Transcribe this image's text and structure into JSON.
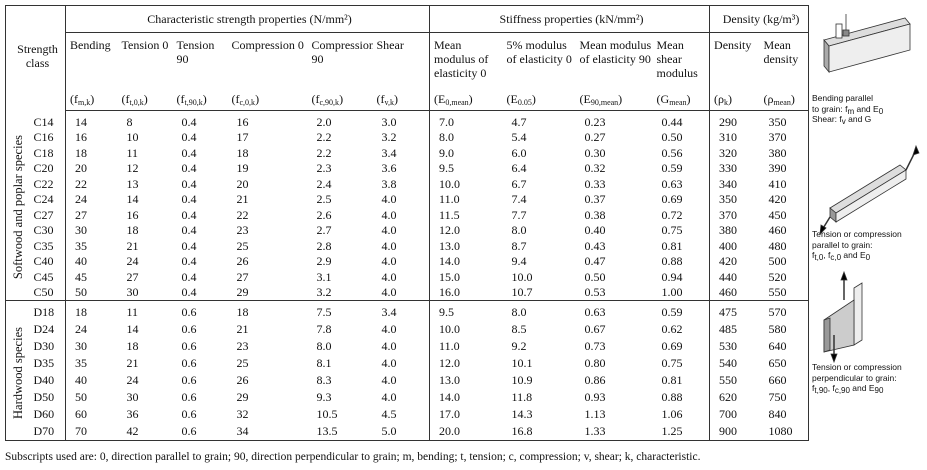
{
  "table": {
    "strength_class_header": "Strength class",
    "group_headers": [
      "Characteristic strength properties (N/mm²)",
      "Stiffness properties (kN/mm²)",
      "Density (kg/m³)"
    ],
    "columns": [
      {
        "name": "Bending",
        "symbol": {
          "pre": "(f",
          "sub": "m,k",
          "post": ")"
        }
      },
      {
        "name": "Tension 0",
        "symbol": {
          "pre": "(f",
          "sub": "t,0,k",
          "post": ")"
        }
      },
      {
        "name": "Tension 90",
        "symbol": {
          "pre": "(f",
          "sub": "t,90,k",
          "post": ")"
        }
      },
      {
        "name": "Compression 0",
        "symbol": {
          "pre": "(f",
          "sub": "c,0,k",
          "post": ")"
        }
      },
      {
        "name": "Compression 90",
        "symbol": {
          "pre": "(f",
          "sub": "c,90,k",
          "post": ")"
        }
      },
      {
        "name": "Shear",
        "symbol": {
          "pre": "(f",
          "sub": "v,k",
          "post": ")"
        }
      },
      {
        "name": "Mean modulus of elasticity 0",
        "symbol": {
          "pre": "(E",
          "sub": "0,mean",
          "post": ")"
        }
      },
      {
        "name": "5% modulus of elasticity 0",
        "symbol": {
          "pre": "(E",
          "sub": "0.05",
          "post": ")"
        }
      },
      {
        "name": "Mean modulus of elasticity 90",
        "symbol": {
          "pre": "(E",
          "sub": "90,mean",
          "post": ")"
        }
      },
      {
        "name": "Mean shear modulus",
        "symbol": {
          "pre": "(G",
          "sub": "mean",
          "post": ")"
        }
      },
      {
        "name": "Density",
        "symbol": {
          "pre": "(ρ",
          "sub": "k",
          "post": ")"
        }
      },
      {
        "name": "Mean density",
        "symbol": {
          "pre": "(ρ",
          "sub": "mean",
          "post": ")"
        }
      }
    ],
    "groups": [
      {
        "label": "Softwood and poplar species",
        "rows": [
          [
            "C14",
            "14",
            "8",
            "0.4",
            "16",
            "2.0",
            "3.0",
            "7.0",
            "4.7",
            "0.23",
            "0.44",
            "290",
            "350"
          ],
          [
            "C16",
            "16",
            "10",
            "0.4",
            "17",
            "2.2",
            "3.2",
            "8.0",
            "5.4",
            "0.27",
            "0.50",
            "310",
            "370"
          ],
          [
            "C18",
            "18",
            "11",
            "0.4",
            "18",
            "2.2",
            "3.4",
            "9.0",
            "6.0",
            "0.30",
            "0.56",
            "320",
            "380"
          ],
          [
            "C20",
            "20",
            "12",
            "0.4",
            "19",
            "2.3",
            "3.6",
            "9.5",
            "6.4",
            "0.32",
            "0.59",
            "330",
            "390"
          ],
          [
            "C22",
            "22",
            "13",
            "0.4",
            "20",
            "2.4",
            "3.8",
            "10.0",
            "6.7",
            "0.33",
            "0.63",
            "340",
            "410"
          ],
          [
            "C24",
            "24",
            "14",
            "0.4",
            "21",
            "2.5",
            "4.0",
            "11.0",
            "7.4",
            "0.37",
            "0.69",
            "350",
            "420"
          ],
          [
            "C27",
            "27",
            "16",
            "0.4",
            "22",
            "2.6",
            "4.0",
            "11.5",
            "7.7",
            "0.38",
            "0.72",
            "370",
            "450"
          ],
          [
            "C30",
            "30",
            "18",
            "0.4",
            "23",
            "2.7",
            "4.0",
            "12.0",
            "8.0",
            "0.40",
            "0.75",
            "380",
            "460"
          ],
          [
            "C35",
            "35",
            "21",
            "0.4",
            "25",
            "2.8",
            "4.0",
            "13.0",
            "8.7",
            "0.43",
            "0.81",
            "400",
            "480"
          ],
          [
            "C40",
            "40",
            "24",
            "0.4",
            "26",
            "2.9",
            "4.0",
            "14.0",
            "9.4",
            "0.47",
            "0.88",
            "420",
            "500"
          ],
          [
            "C45",
            "45",
            "27",
            "0.4",
            "27",
            "3.1",
            "4.0",
            "15.0",
            "10.0",
            "0.50",
            "0.94",
            "440",
            "520"
          ],
          [
            "C50",
            "50",
            "30",
            "0.4",
            "29",
            "3.2",
            "4.0",
            "16.0",
            "10.7",
            "0.53",
            "1.00",
            "460",
            "550"
          ]
        ]
      },
      {
        "label": "Hardwood species",
        "rows": [
          [
            "D18",
            "18",
            "11",
            "0.6",
            "18",
            "7.5",
            "3.4",
            "9.5",
            "8.0",
            "0.63",
            "0.59",
            "475",
            "570"
          ],
          [
            "D24",
            "24",
            "14",
            "0.6",
            "21",
            "7.8",
            "4.0",
            "10.0",
            "8.5",
            "0.67",
            "0.62",
            "485",
            "580"
          ],
          [
            "D30",
            "30",
            "18",
            "0.6",
            "23",
            "8.0",
            "4.0",
            "11.0",
            "9.2",
            "0.73",
            "0.69",
            "530",
            "640"
          ],
          [
            "D35",
            "35",
            "21",
            "0.6",
            "25",
            "8.1",
            "4.0",
            "12.0",
            "10.1",
            "0.80",
            "0.75",
            "540",
            "650"
          ],
          [
            "D40",
            "40",
            "24",
            "0.6",
            "26",
            "8.3",
            "4.0",
            "13.0",
            "10.9",
            "0.86",
            "0.81",
            "550",
            "660"
          ],
          [
            "D50",
            "50",
            "30",
            "0.6",
            "29",
            "9.3",
            "4.0",
            "14.0",
            "11.8",
            "0.93",
            "0.88",
            "620",
            "750"
          ],
          [
            "D60",
            "60",
            "36",
            "0.6",
            "32",
            "10.5",
            "4.5",
            "17.0",
            "14.3",
            "1.13",
            "1.06",
            "700",
            "840"
          ],
          [
            "D70",
            "70",
            "42",
            "0.6",
            "34",
            "13.5",
            "5.0",
            "20.0",
            "16.8",
            "1.33",
            "1.25",
            "900",
            "1080"
          ]
        ]
      }
    ]
  },
  "figures": [
    {
      "caption": [
        [
          "Bending parallel"
        ],
        [
          "to grain: f",
          {
            "sub": "m"
          },
          " and E",
          {
            "sub": "0"
          }
        ],
        [
          "Shear: f",
          {
            "sub": "v"
          },
          " and G"
        ]
      ]
    },
    {
      "caption": [
        [
          "Tension or compression"
        ],
        [
          "parallel to grain:"
        ],
        [
          "f",
          {
            "sub": "t,0"
          },
          ", f",
          {
            "sub": "c,0"
          },
          " and E",
          {
            "sub": "0"
          }
        ]
      ]
    },
    {
      "caption": [
        [
          "Tension or compression"
        ],
        [
          "perpendicular to grain:"
        ],
        [
          "f",
          {
            "sub": "t,90"
          },
          ", f",
          {
            "sub": "c,90"
          },
          " and E",
          {
            "sub": "90"
          }
        ]
      ]
    }
  ],
  "footnote": "Subscripts used are: 0, direction parallel to grain; 90, direction perpendicular to grain; m, bending; t, tension; c, compression; v, shear; k, characteristic."
}
